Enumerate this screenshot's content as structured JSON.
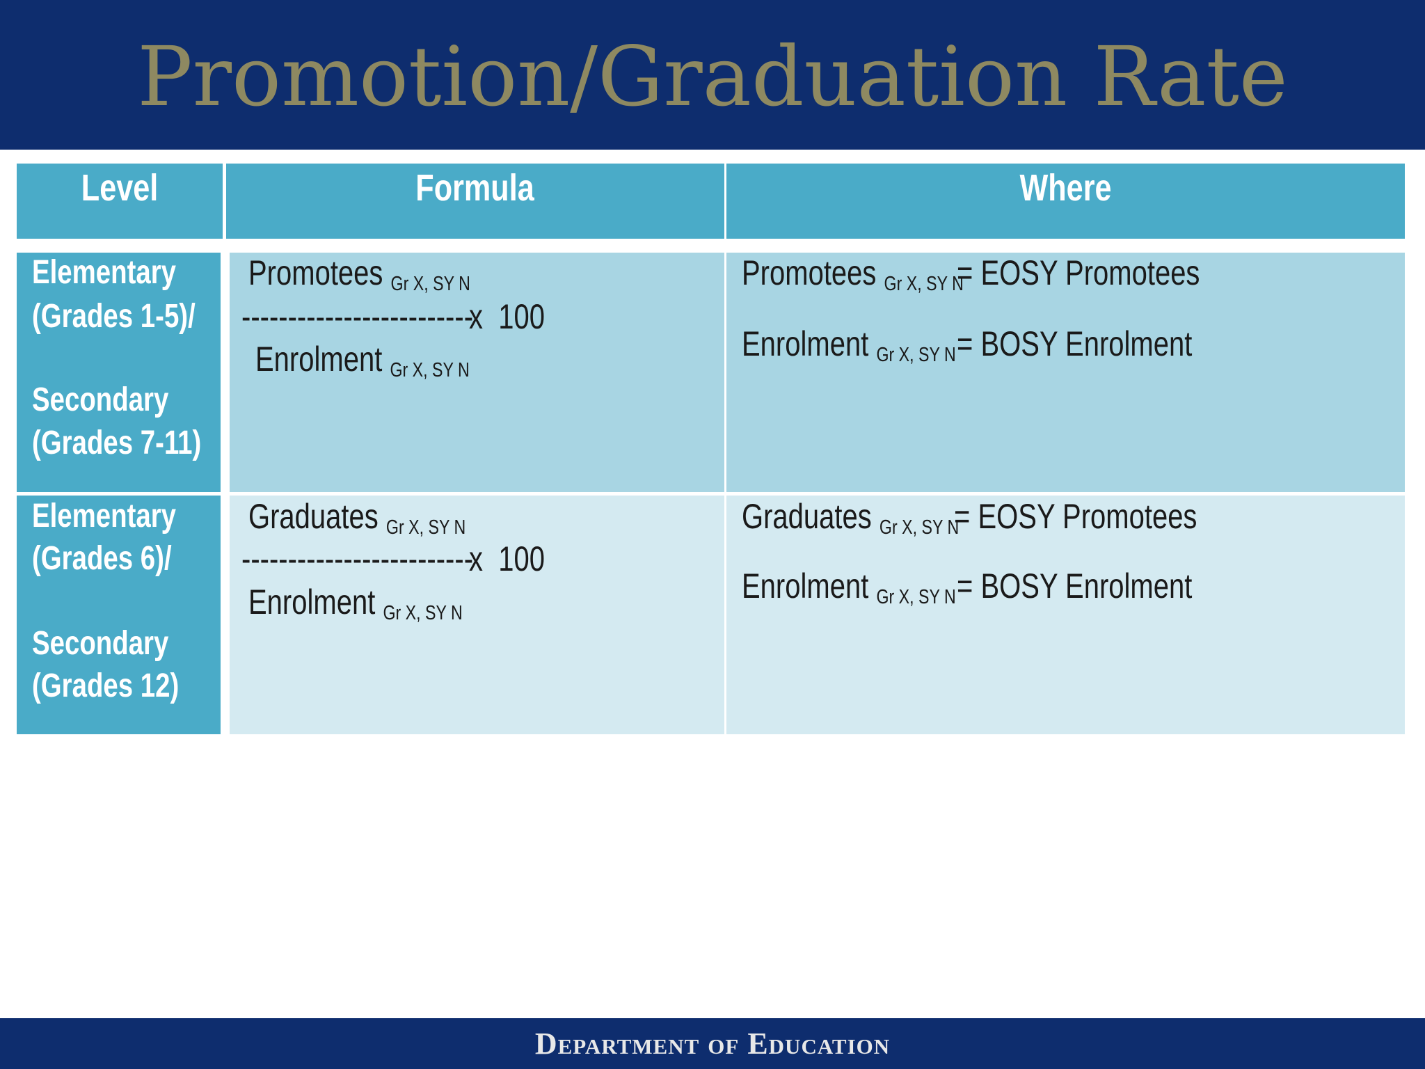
{
  "header": {
    "title": "Promotion/Graduation Rate"
  },
  "table": {
    "headers": [
      "Level",
      "Formula",
      "Where"
    ],
    "rows": [
      {
        "level": [
          "Elementary",
          "(Grades 1-5)/",
          "Secondary",
          "(Grades 7-11)"
        ],
        "formula": {
          "numerator": "Promotees",
          "numerator_sub": "Gr X, SY N",
          "dashes": "-------------------------",
          "multiplier": "x  100",
          "denominator": "Enrolment",
          "denominator_sub": "Gr X, SY N"
        },
        "where": [
          {
            "term": "Promotees",
            "sub": "Gr X, SY N",
            "definition": "= EOSY Promotees"
          },
          {
            "term": "Enrolment",
            "sub": "Gr X, SY N",
            "definition": "= BOSY Enrolment"
          }
        ]
      },
      {
        "level": [
          "Elementary",
          "(Grades 6)/",
          "Secondary",
          "(Grades 12)"
        ],
        "formula": {
          "numerator": "Graduates",
          "numerator_sub": "Gr X, SY N",
          "dashes": "-------------------------",
          "multiplier": "x  100",
          "denominator": "Enrolment",
          "denominator_sub": "Gr X, SY N"
        },
        "where": [
          {
            "term": "Graduates",
            "sub": "Gr X, SY N",
            "definition": "= EOSY Promotees"
          },
          {
            "term": "Enrolment",
            "sub": "Gr X, SY N",
            "definition": "= BOSY Enrolment"
          }
        ]
      }
    ]
  },
  "footer": {
    "text": "Department of Education"
  }
}
